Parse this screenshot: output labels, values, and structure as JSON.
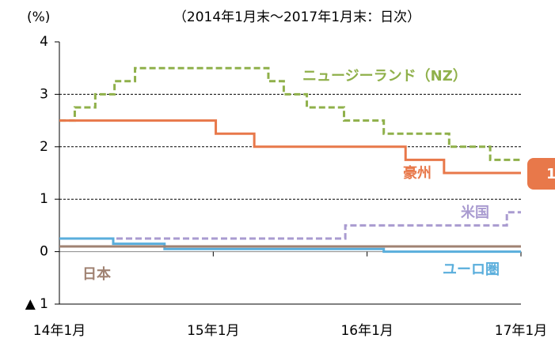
{
  "chart_data": {
    "type": "line",
    "step": "post",
    "y_label": "(%)",
    "subtitle": "（2014年1月末～2017年1月末：日次）",
    "annotation": "1",
    "xlim": [
      0,
      36
    ],
    "xticks": [
      {
        "value": 0,
        "label": "14年1月"
      },
      {
        "value": 12,
        "label": "15年1月"
      },
      {
        "value": 24,
        "label": "16年1月"
      },
      {
        "value": 36,
        "label": "17年1月"
      }
    ],
    "ylim": [
      -1,
      4
    ],
    "yticks": [
      {
        "value": -1,
        "label": "▲ 1"
      },
      0,
      1,
      2,
      3,
      4
    ],
    "grid": true,
    "series": [
      {
        "name": "ニュージーランド（NZ）",
        "color": "#8fb04a",
        "dash": true,
        "x": [
          0,
          1.2,
          2.8,
          4.3,
          5.9,
          16.3,
          17.5,
          19.3,
          22.2,
          25.3,
          30.4,
          33.6,
          36
        ],
        "values": [
          2.5,
          2.75,
          3.0,
          3.25,
          3.5,
          3.25,
          3.0,
          2.75,
          2.5,
          2.25,
          2.0,
          1.75,
          1.75
        ]
      },
      {
        "name": "豪州",
        "color": "#e8784a",
        "dash": false,
        "x": [
          0,
          12.2,
          15.2,
          27,
          30,
          36
        ],
        "values": [
          2.5,
          2.25,
          2.0,
          1.75,
          1.5,
          1.5
        ]
      },
      {
        "name": "米国",
        "color": "#a99bd0",
        "dash": true,
        "x": [
          0,
          22.3,
          34.9,
          36
        ],
        "values": [
          0.25,
          0.5,
          0.75,
          0.75
        ]
      },
      {
        "name": "ユーロ圏",
        "color": "#5aaedc",
        "dash": false,
        "x": [
          0,
          4.2,
          8.2,
          25.3,
          36
        ],
        "values": [
          0.25,
          0.15,
          0.05,
          0,
          0
        ]
      },
      {
        "name": "日本",
        "color": "#a08272",
        "dash": false,
        "x": [
          0,
          36
        ],
        "values": [
          0.1,
          0.1
        ]
      }
    ]
  }
}
